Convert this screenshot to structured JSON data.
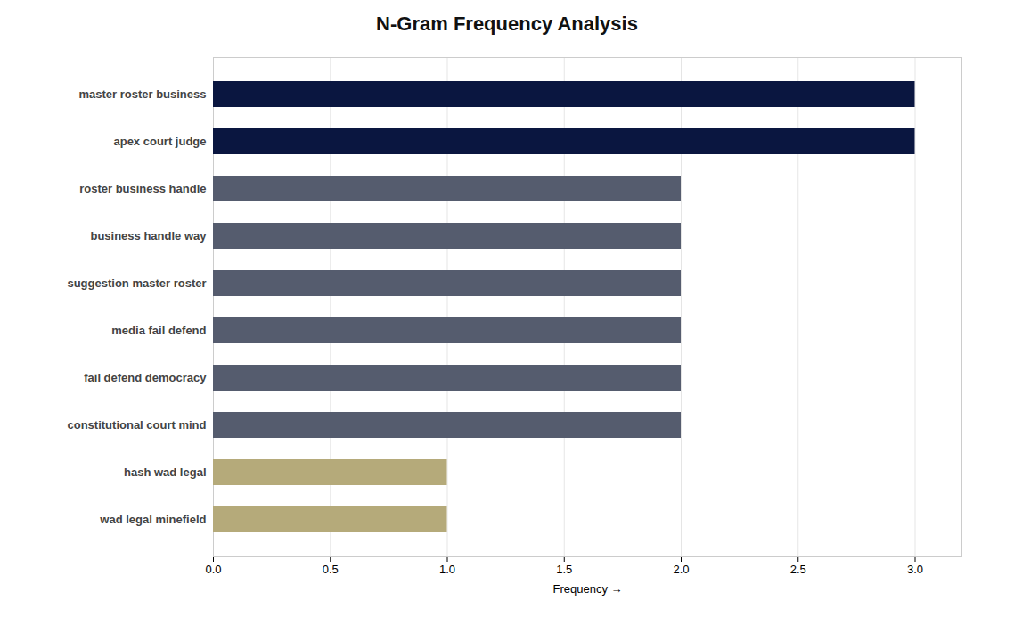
{
  "chart_data": {
    "type": "bar",
    "orientation": "horizontal",
    "title": "N-Gram Frequency Analysis",
    "xlabel": "Frequency",
    "categories": [
      "wad legal minefield",
      "hash wad legal",
      "constitutional court mind",
      "fail defend democracy",
      "media fail defend",
      "suggestion master roster",
      "business handle way",
      "roster business handle",
      "apex court judge",
      "master roster business"
    ],
    "values": [
      1,
      1,
      2,
      2,
      2,
      2,
      2,
      2,
      3,
      3
    ],
    "colors": [
      "#b5aa7a",
      "#b5aa7a",
      "#555c6e",
      "#555c6e",
      "#555c6e",
      "#555c6e",
      "#555c6e",
      "#555c6e",
      "#0a1640",
      "#0a1640"
    ],
    "xlim": [
      0,
      3.2
    ],
    "xticks": [
      {
        "value": 0,
        "label": "0.0"
      },
      0.5,
      {
        "value": 1,
        "label": "1.0"
      },
      1.5,
      {
        "value": 2,
        "label": "2.0"
      },
      2.5,
      {
        "value": 3,
        "label": "3.0"
      }
    ],
    "grid": true
  }
}
